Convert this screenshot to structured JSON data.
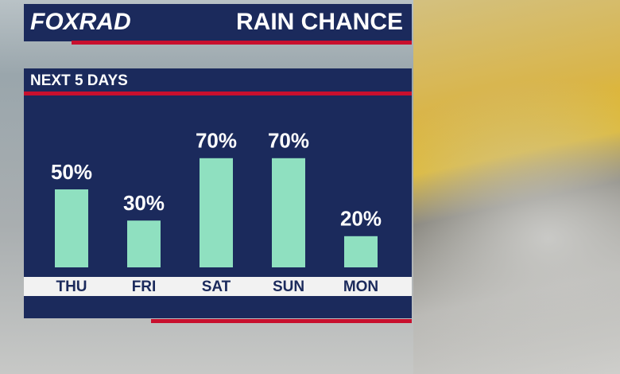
{
  "brand": "FOXRAD",
  "chart_data": {
    "type": "bar",
    "title": "RAIN CHANCE",
    "subtitle": "NEXT 5 DAYS",
    "categories": [
      "THU",
      "FRI",
      "SAT",
      "SUN",
      "MON"
    ],
    "values": [
      50,
      30,
      70,
      70,
      20
    ],
    "value_labels": [
      "50%",
      "30%",
      "70%",
      "70%",
      "20%"
    ],
    "color": "#8fe0c0"
  }
}
